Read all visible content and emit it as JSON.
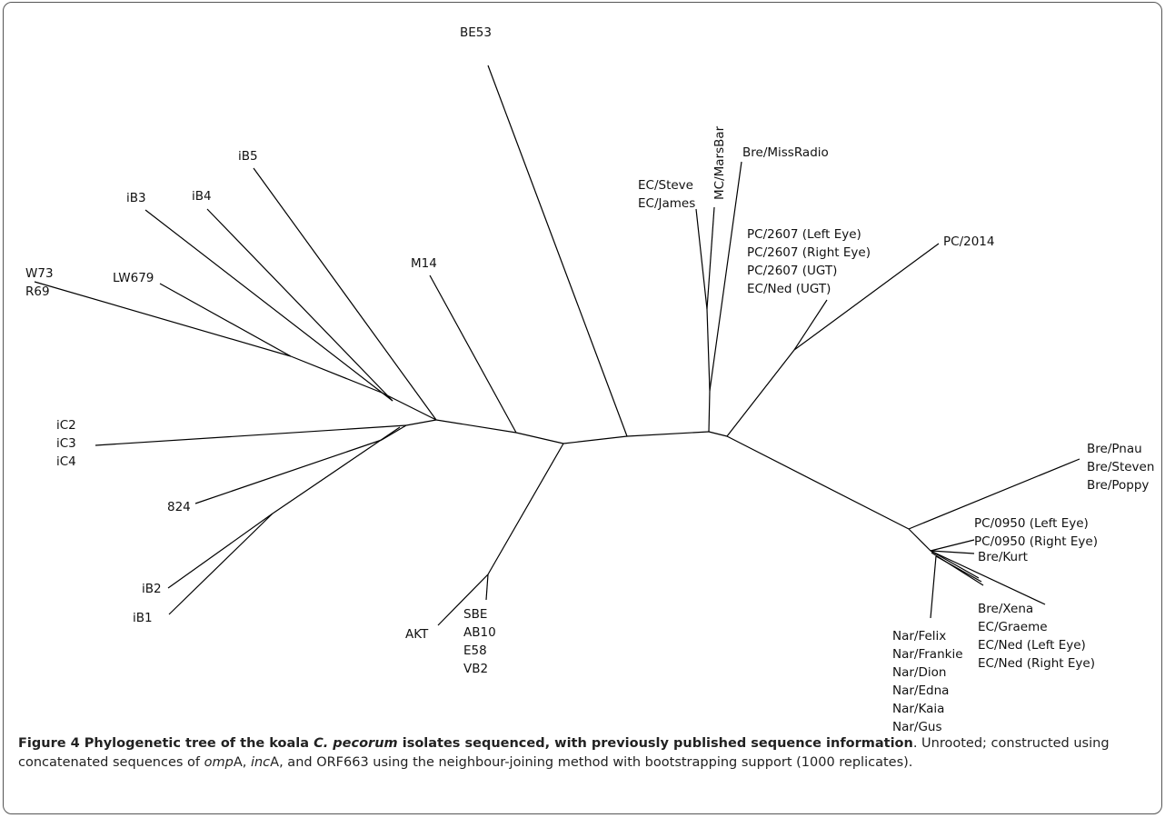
{
  "figure": {
    "caption_label": "Figure 4",
    "caption_title_1": "Phylogenetic tree of the koala",
    "caption_title_species": "C. pecorum",
    "caption_title_2": "isolates sequenced, with previously published sequence information",
    "caption_body_1": ". Unrooted; constructed using concatenated sequences of",
    "caption_gene_1": "omp",
    "caption_gene_1_suffix": "A,",
    "caption_gene_2": "inc",
    "caption_gene_2_suffix": "A, and ORF663 using the neighbour-joining method with bootstrapping support (1000 replicates)."
  },
  "tree": {
    "labels": {
      "be53": "BE53",
      "mc_marsbar": "MC/MarsBar",
      "bre_missradio": "Bre/MissRadio",
      "ec_steve": "EC/Steve",
      "ec_james": "EC/James",
      "pc2607_left": "PC/2607 (Left Eye)",
      "pc2607_right": "PC/2607 (Right Eye)",
      "pc2607_ugt": "PC/2607 (UGT)",
      "ecned_ugt": "EC/Ned (UGT)",
      "pc2014": "PC/2014",
      "ib5": "iB5",
      "ib4": "iB4",
      "ib3": "iB3",
      "w73": "W73",
      "r69": "R69",
      "lw679": "LW679",
      "m14": "M14",
      "ic2": "iC2",
      "ic3": "iC3",
      "ic4": "iC4",
      "l824": "824",
      "ib2": "iB2",
      "ib1": "iB1",
      "akt": "AKT",
      "sbe": "SBE",
      "ab10": "AB10",
      "e58": "E58",
      "vb2": "VB2",
      "bre_pnau": "Bre/Pnau",
      "bre_steven": "Bre/Steven",
      "bre_poppy": "Bre/Poppy",
      "pc0950_left": "PC/0950 (Left Eye)",
      "pc0950_right": "PC/0950 (Right Eye)",
      "bre_kurt": "Bre/Kurt",
      "bre_xena": "Bre/Xena",
      "ec_graeme": "EC/Graeme",
      "ecned_left": "EC/Ned (Left Eye)",
      "ecned_right": "EC/Ned (Right Eye)",
      "nar_felix": "Nar/Felix",
      "nar_frankie": "Nar/Frankie",
      "nar_dion": "Nar/Dion",
      "nar_edna": "Nar/Edna",
      "nar_kaia": "Nar/Kaia",
      "nar_gus": "Nar/Gus"
    }
  }
}
